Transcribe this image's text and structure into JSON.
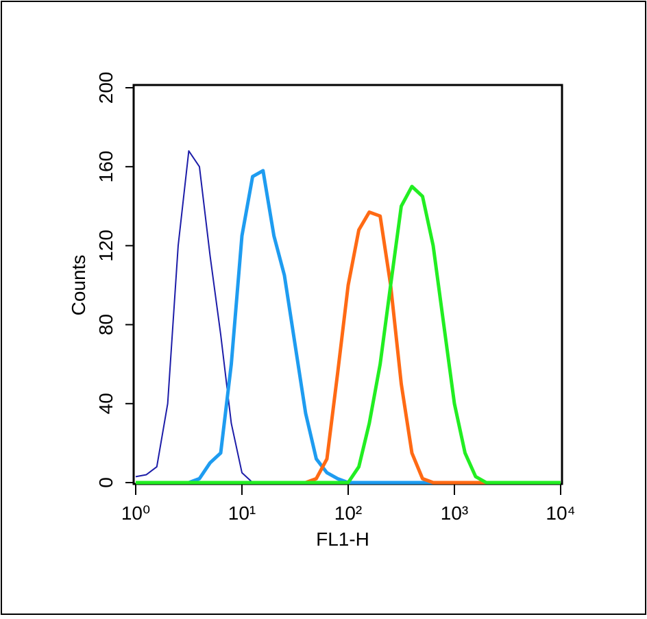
{
  "chart_data": {
    "type": "line",
    "xlabel": "FL1-H",
    "ylabel": "Counts",
    "xscale": "log",
    "xlim": [
      1,
      10000
    ],
    "ylim": [
      0,
      200
    ],
    "xticks": [
      {
        "value": 1,
        "label": "10⁰"
      },
      {
        "value": 10,
        "label": "10¹"
      },
      {
        "value": 100,
        "label": "10²"
      },
      {
        "value": 1000,
        "label": "10³"
      },
      {
        "value": 10000,
        "label": "10⁴"
      }
    ],
    "yticks": [
      0,
      40,
      80,
      120,
      160,
      200
    ],
    "x": [
      1,
      1.26,
      1.58,
      2,
      2.51,
      3.16,
      3.98,
      5.01,
      6.31,
      7.94,
      10,
      12.6,
      15.8,
      20,
      25.1,
      31.6,
      39.8,
      50.1,
      63.1,
      79.4,
      100,
      126,
      158,
      200,
      251,
      316,
      398,
      501,
      631,
      794,
      1000,
      1259,
      1585,
      1995,
      2512,
      3162,
      3981,
      5012,
      6310,
      7943,
      10000
    ],
    "series": [
      {
        "color": "#1c1ca8",
        "values": [
          3,
          4,
          8,
          40,
          120,
          168,
          160,
          115,
          75,
          30,
          5,
          0,
          0,
          0,
          0,
          0,
          0,
          0,
          0,
          0,
          0,
          0,
          0,
          0,
          0,
          0,
          0,
          0,
          0,
          0,
          0,
          0,
          0,
          0,
          0,
          0,
          0,
          0,
          0,
          0,
          0
        ]
      },
      {
        "color": "#1e9cf0",
        "values": [
          0,
          0,
          0,
          0,
          0,
          0,
          2,
          10,
          15,
          60,
          125,
          155,
          158,
          125,
          105,
          70,
          35,
          12,
          5,
          2,
          0,
          0,
          0,
          0,
          0,
          0,
          0,
          0,
          0,
          0,
          0,
          0,
          0,
          0,
          0,
          0,
          0,
          0,
          0,
          0,
          0
        ]
      },
      {
        "color": "#ff6a14",
        "values": [
          0,
          0,
          0,
          0,
          0,
          0,
          0,
          0,
          0,
          0,
          0,
          0,
          0,
          0,
          0,
          0,
          0,
          2,
          12,
          55,
          100,
          128,
          137,
          135,
          100,
          50,
          15,
          2,
          0,
          0,
          0,
          0,
          0,
          0,
          0,
          0,
          0,
          0,
          0,
          0,
          0
        ]
      },
      {
        "color": "#22ee22",
        "values": [
          0,
          0,
          0,
          0,
          0,
          0,
          0,
          0,
          0,
          0,
          0,
          0,
          0,
          0,
          0,
          0,
          0,
          0,
          0,
          0,
          0,
          8,
          30,
          60,
          100,
          140,
          150,
          145,
          120,
          80,
          40,
          15,
          3,
          0,
          0,
          0,
          0,
          0,
          0,
          0,
          0
        ]
      }
    ]
  }
}
